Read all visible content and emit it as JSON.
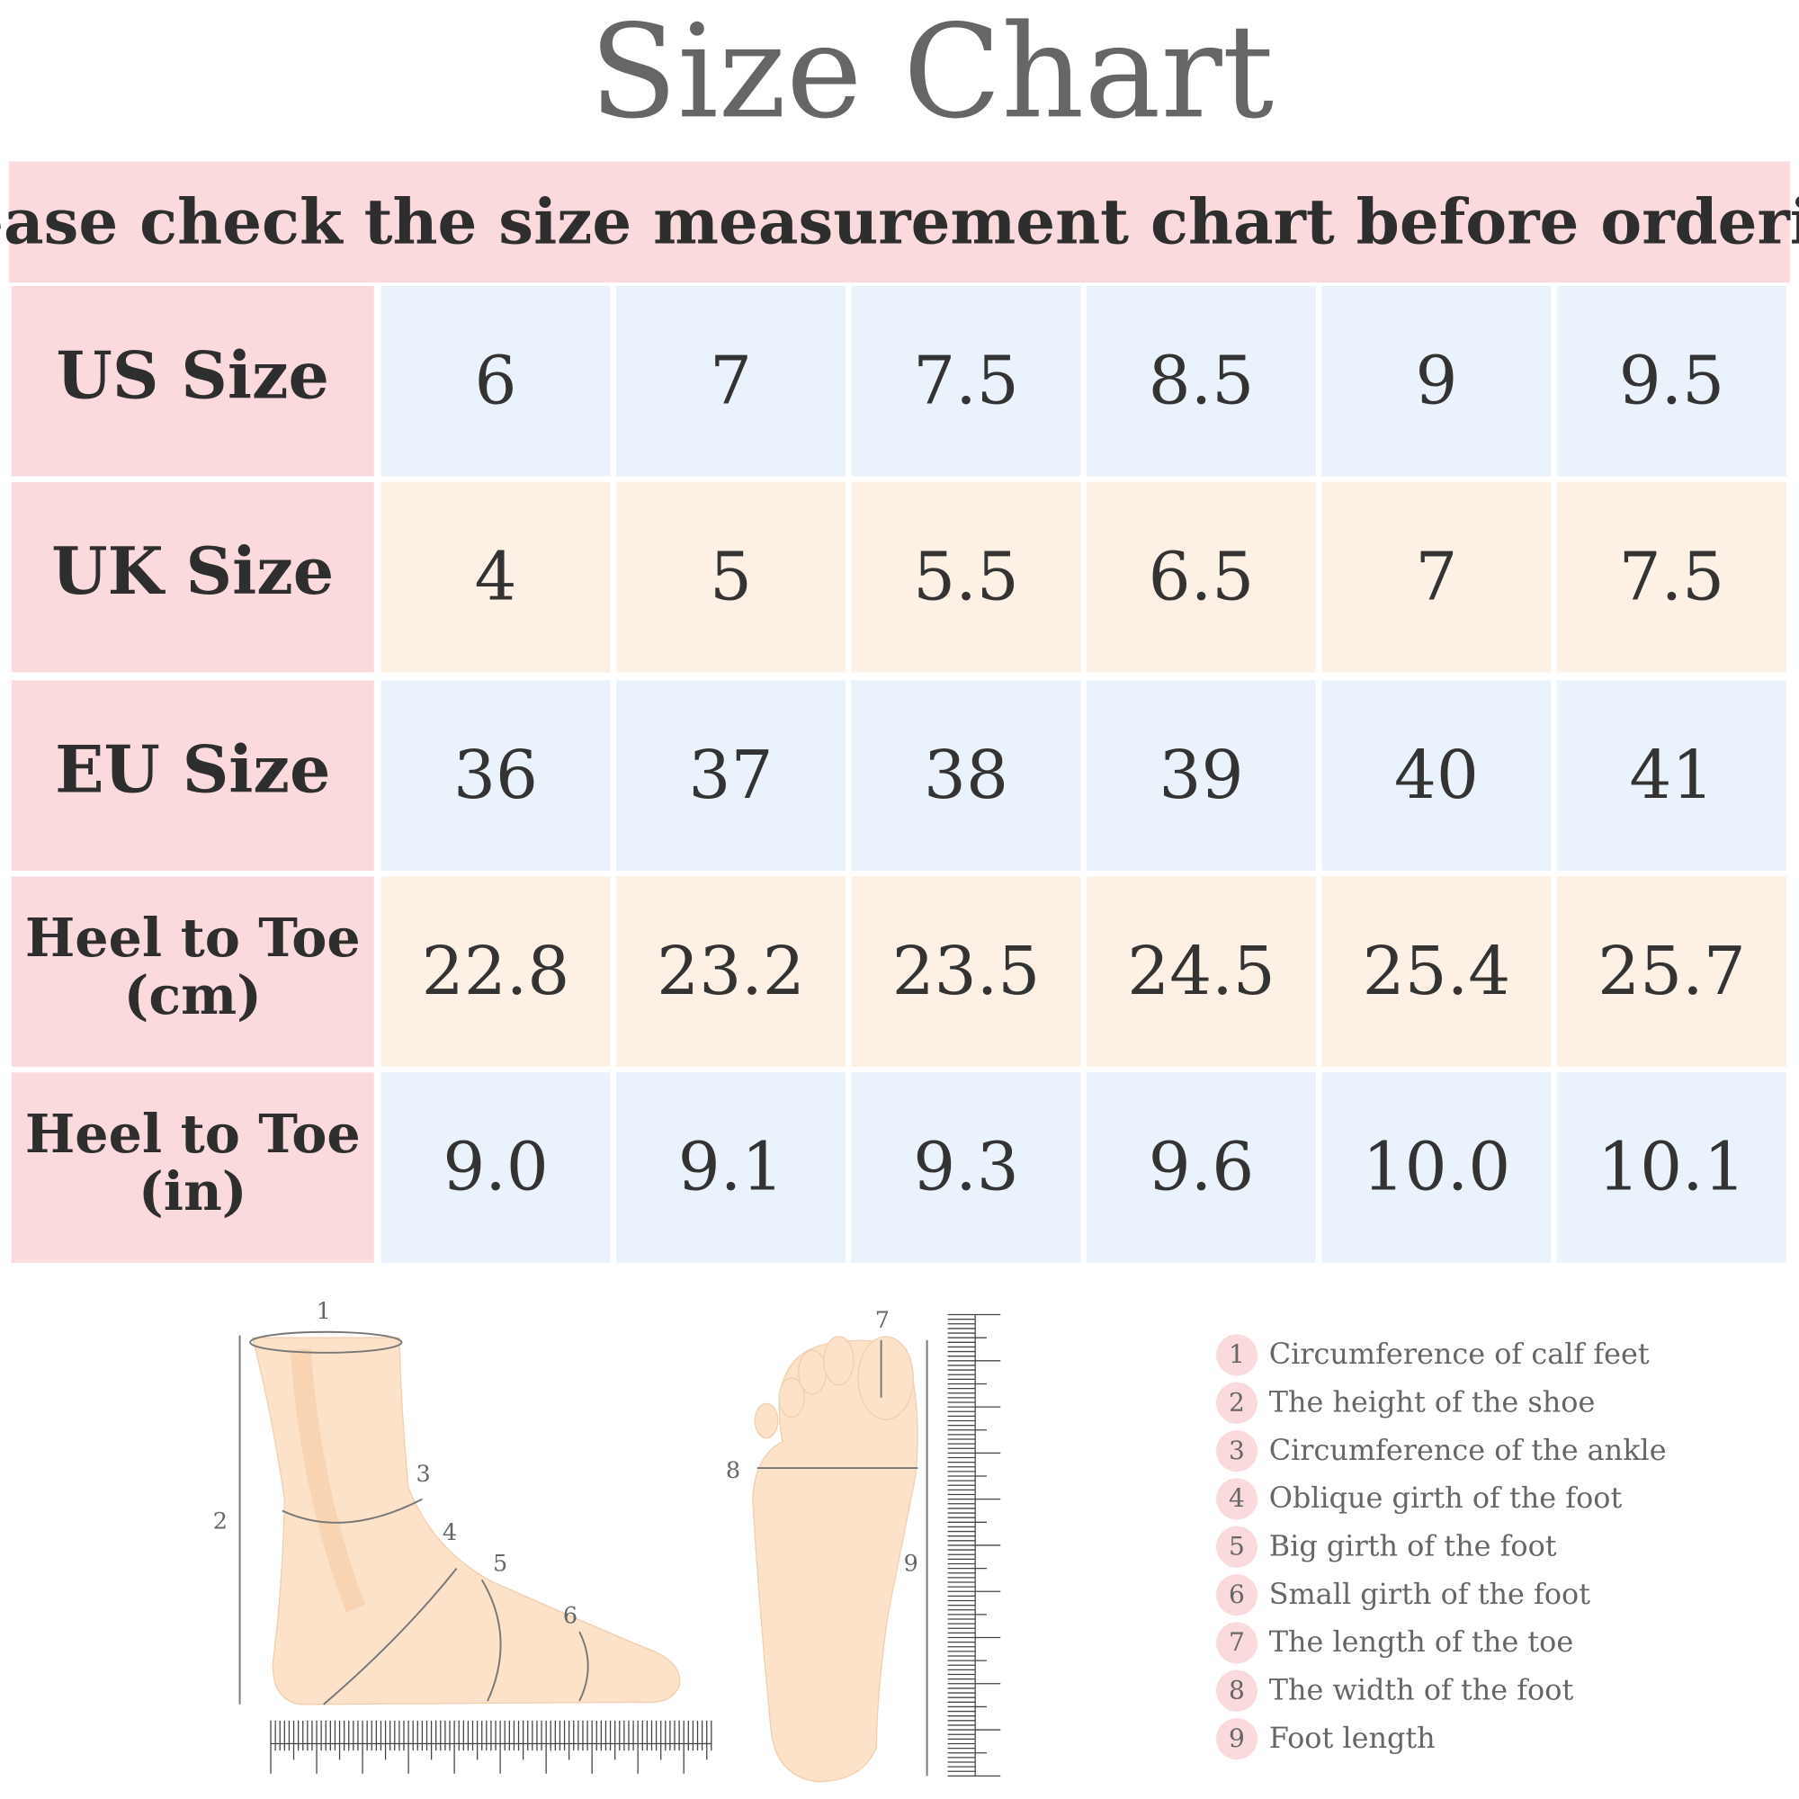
{
  "title": "Size  Chart",
  "subtitle": "please check the size measurement chart before ordering",
  "table": {
    "rows": [
      {
        "label": [
          "US Size"
        ],
        "cells": [
          "6",
          "7",
          "7.5",
          "8.5",
          "9",
          "9.5"
        ]
      },
      {
        "label": [
          "UK Size"
        ],
        "cells": [
          "4",
          "5",
          "5.5",
          "6.5",
          "7",
          "7.5"
        ]
      },
      {
        "label": [
          "EU Size"
        ],
        "cells": [
          "36",
          "37",
          "38",
          "39",
          "40",
          "41"
        ]
      },
      {
        "label": [
          "Heel to Toe",
          "(cm)"
        ],
        "cells": [
          "22.8",
          "23.2",
          "23.5",
          "24.5",
          "25.4",
          "25.7"
        ]
      },
      {
        "label": [
          "Heel to Toe",
          "(in)"
        ],
        "cells": [
          "9.0",
          "9.1",
          "9.3",
          "9.6",
          "10.0",
          "10.1"
        ]
      }
    ]
  },
  "legend": {
    "items": [
      {
        "number": "1",
        "text": "Circumference of calf feet"
      },
      {
        "number": "2",
        "text": "The height of the shoe"
      },
      {
        "number": "3",
        "text": "Circumference of the ankle"
      },
      {
        "number": "4",
        "text": "Oblique girth of the foot"
      },
      {
        "number": "5",
        "text": "Big girth of the foot"
      },
      {
        "number": "6",
        "text": "Small girth of the foot"
      },
      {
        "number": "7",
        "text": "The length of the toe"
      },
      {
        "number": "8",
        "text": "The width of the foot"
      },
      {
        "number": "9",
        "text": "Foot length"
      }
    ]
  }
}
